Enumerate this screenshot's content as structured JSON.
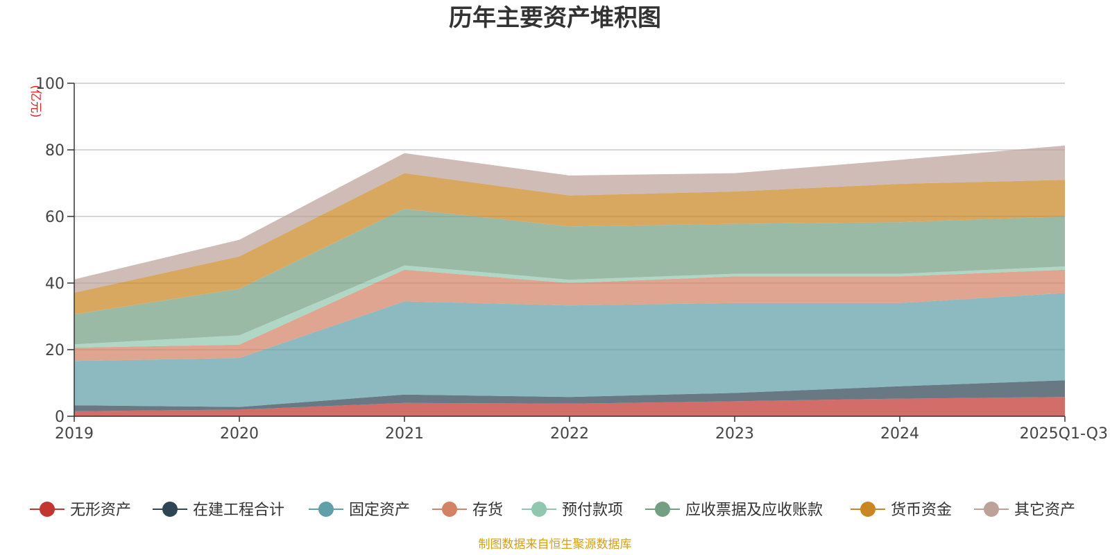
{
  "chart_data": {
    "type": "area",
    "stacked": true,
    "title": "历年主要资产堆积图",
    "unit_label": "(亿元)",
    "categories": [
      "2019",
      "2020",
      "2021",
      "2022",
      "2023",
      "2024",
      "2025Q1-Q3"
    ],
    "ylim": [
      0,
      100
    ],
    "yticks": [
      0,
      20,
      40,
      60,
      80,
      100
    ],
    "grid": true,
    "legend_position": "bottom",
    "series": [
      {
        "name": "无形资产",
        "color": "#c23531",
        "values": [
          1.5,
          2.0,
          4.0,
          3.8,
          4.5,
          5.3,
          5.8
        ]
      },
      {
        "name": "在建工程合计",
        "color": "#2f4554",
        "values": [
          1.8,
          0.8,
          2.5,
          2.0,
          2.5,
          3.7,
          5.0
        ]
      },
      {
        "name": "固定资产",
        "color": "#61a0a8",
        "values": [
          13.3,
          14.7,
          28.0,
          27.5,
          27.0,
          25.0,
          26.2
        ]
      },
      {
        "name": "存货",
        "color": "#d48265",
        "values": [
          4.0,
          4.0,
          9.5,
          6.7,
          8.0,
          8.0,
          7.0
        ]
      },
      {
        "name": "预付款项",
        "color": "#91c7ae",
        "values": [
          1.0,
          2.8,
          1.3,
          1.0,
          0.8,
          0.8,
          1.0
        ]
      },
      {
        "name": "应收票据及应收账款",
        "color": "#749f83",
        "values": [
          9.0,
          14.0,
          17.0,
          16.0,
          15.0,
          15.5,
          15.0
        ]
      },
      {
        "name": "货币资金",
        "color": "#ca8622",
        "values": [
          6.5,
          9.7,
          10.7,
          9.3,
          9.7,
          11.5,
          11.0
        ]
      },
      {
        "name": "其它资产",
        "color": "#bda29a",
        "values": [
          4.0,
          5.0,
          6.0,
          6.0,
          5.5,
          7.2,
          10.3
        ]
      }
    ]
  },
  "source_text": "制图数据来自恒生聚源数据库"
}
